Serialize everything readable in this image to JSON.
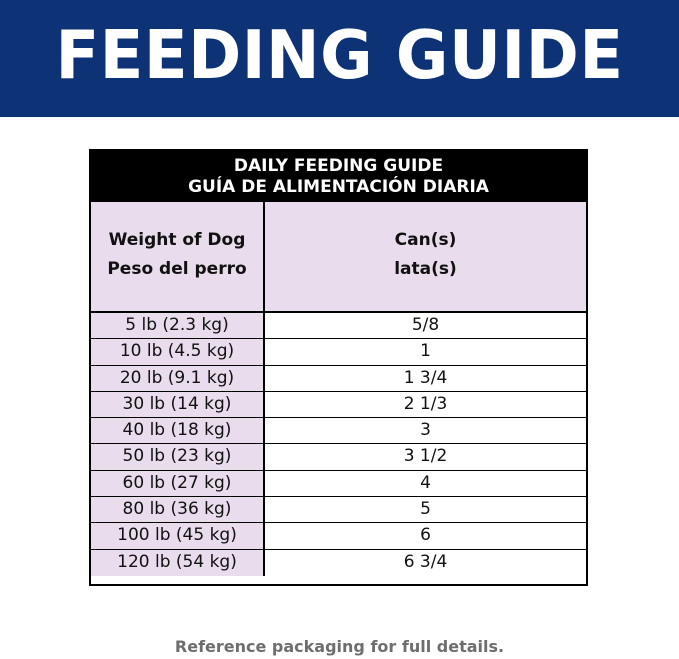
{
  "banner": {
    "title": "FEEDING GUIDE"
  },
  "guide": {
    "heading_en": "DAILY FEEDING GUIDE",
    "heading_es": "GUÍA DE ALIMENTACIÓN DIARIA",
    "col_weight_en": "Weight of Dog",
    "col_weight_es": "Peso del perro",
    "col_can_en": "Can(s)",
    "col_can_es": "lata(s)",
    "rows": [
      {
        "weight": "5 lb (2.3 kg)",
        "cans": "5/8"
      },
      {
        "weight": "10 lb (4.5 kg)",
        "cans": "1"
      },
      {
        "weight": "20 lb (9.1 kg)",
        "cans": "1 3/4"
      },
      {
        "weight": "30 lb (14 kg)",
        "cans": "2 1/3"
      },
      {
        "weight": "40 lb (18 kg)",
        "cans": "3"
      },
      {
        "weight": "50 lb (23 kg)",
        "cans": "3 1/2"
      },
      {
        "weight": "60 lb (27 kg)",
        "cans": "4"
      },
      {
        "weight": "80 lb (36 kg)",
        "cans": "5"
      },
      {
        "weight": "100 lb (45 kg)",
        "cans": "6"
      },
      {
        "weight": "120 lb (54 kg)",
        "cans": "6 3/4"
      }
    ]
  },
  "footnote": "Reference packaging for full details.",
  "colors": {
    "banner": "#0d3275",
    "header_fill": "#e9dcec",
    "footnote": "#6e6e6e"
  }
}
